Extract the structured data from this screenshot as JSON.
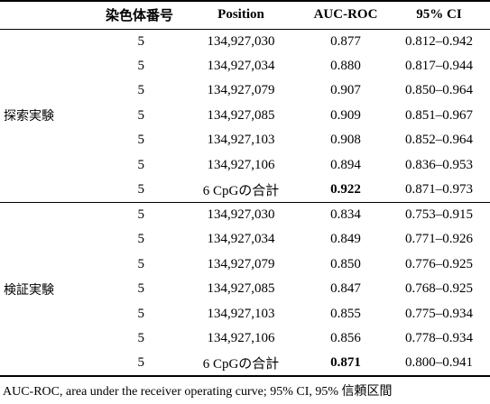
{
  "headers": {
    "group": "",
    "chromosome": "染色体番号",
    "position": "Position",
    "auc": "AUC-ROC",
    "ci": "95% CI"
  },
  "groups": [
    {
      "label": "探索実験",
      "rows": [
        {
          "chromosome": "5",
          "position": "134,927,030",
          "auc": "0.877",
          "ci": "0.812–0.942"
        },
        {
          "chromosome": "5",
          "position": "134,927,034",
          "auc": "0.880",
          "ci": "0.817–0.944"
        },
        {
          "chromosome": "5",
          "position": "134,927,079",
          "auc": "0.907",
          "ci": "0.850–0.964"
        },
        {
          "chromosome": "5",
          "position": "134,927,085",
          "auc": "0.909",
          "ci": "0.851–0.967"
        },
        {
          "chromosome": "5",
          "position": "134,927,103",
          "auc": "0.908",
          "ci": "0.852–0.964"
        },
        {
          "chromosome": "5",
          "position": "134,927,106",
          "auc": "0.894",
          "ci": "0.836–0.953"
        },
        {
          "chromosome": "5",
          "position": "6 CpGの合計",
          "auc": "0.922",
          "ci": "0.871–0.973"
        }
      ]
    },
    {
      "label": "検証実験",
      "rows": [
        {
          "chromosome": "5",
          "position": "134,927,030",
          "auc": "0.834",
          "ci": "0.753–0.915"
        },
        {
          "chromosome": "5",
          "position": "134,927,034",
          "auc": "0.849",
          "ci": "0.771–0.926"
        },
        {
          "chromosome": "5",
          "position": "134,927,079",
          "auc": "0.850",
          "ci": "0.776–0.925"
        },
        {
          "chromosome": "5",
          "position": "134,927,085",
          "auc": "0.847",
          "ci": "0.768–0.925"
        },
        {
          "chromosome": "5",
          "position": "134,927,103",
          "auc": "0.855",
          "ci": "0.775–0.934"
        },
        {
          "chromosome": "5",
          "position": "134,927,106",
          "auc": "0.856",
          "ci": "0.778–0.934"
        },
        {
          "chromosome": "5",
          "position": "6 CpGの合計",
          "auc": "0.871",
          "ci": "0.800–0.941"
        }
      ]
    }
  ],
  "footnote": "AUC-ROC, area under the receiver operating curve; 95% CI, 95% 信頼区間"
}
